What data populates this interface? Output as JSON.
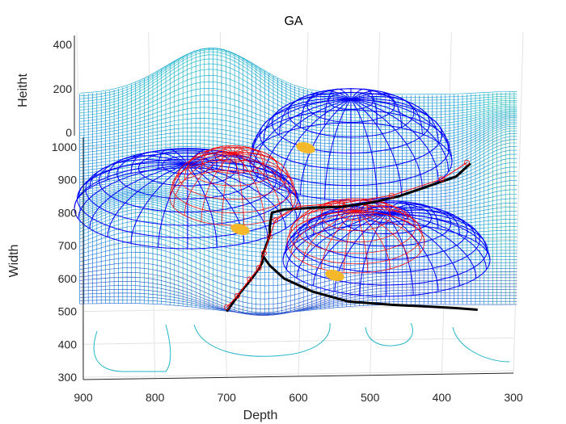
{
  "chart_data": {
    "type": "surface-3d",
    "title": "GA",
    "xlabel": "Depth",
    "ylabel": "Width",
    "zlabel": "Heitht",
    "x_ticks": [
      "900",
      "800",
      "700",
      "600",
      "500",
      "400",
      "300"
    ],
    "y_ticks": [
      "1000",
      "900",
      "800",
      "700",
      "600",
      "500",
      "400",
      "300"
    ],
    "z_ticks": [
      "400",
      "200",
      "0"
    ],
    "xlim": [
      300,
      900
    ],
    "ylim": [
      300,
      1000
    ],
    "zlim": [
      0,
      400
    ],
    "grid": true,
    "terrain_colormap": "parula",
    "threat_domes": [
      {
        "color": "#0000ff",
        "center_depth": 760,
        "center_width": 900
      },
      {
        "color": "#0000ff",
        "center_depth": 520,
        "center_width": 1010
      },
      {
        "color": "#0000ff",
        "center_depth": 480,
        "center_width": 750
      }
    ],
    "inner_domes": [
      {
        "color": "#ff0000",
        "center_depth": 700,
        "center_width": 900
      },
      {
        "color": "#ff0000",
        "center_depth": 500,
        "center_width": 740
      }
    ],
    "markers": [
      {
        "color": "#f5b82a",
        "depth": 590,
        "width": 940
      },
      {
        "color": "#f5b82a",
        "depth": 680,
        "width": 740
      },
      {
        "color": "#f5b82a",
        "depth": 550,
        "width": 610
      }
    ],
    "paths": [
      {
        "color": "#000000",
        "points": [
          [
            700,
            500
          ],
          [
            690,
            530
          ],
          [
            680,
            560
          ],
          [
            665,
            600
          ],
          [
            655,
            630
          ],
          [
            650,
            650
          ],
          [
            650,
            670
          ],
          [
            645,
            700
          ],
          [
            640,
            730
          ],
          [
            640,
            755
          ],
          [
            637,
            800
          ],
          [
            620,
            810
          ],
          [
            580,
            815
          ],
          [
            540,
            818
          ],
          [
            500,
            830
          ],
          [
            460,
            850
          ],
          [
            420,
            880
          ],
          [
            380,
            910
          ],
          [
            360,
            950
          ]
        ]
      },
      {
        "color": "#000000",
        "points": [
          [
            650,
            670
          ],
          [
            640,
            640
          ],
          [
            620,
            600
          ],
          [
            580,
            560
          ],
          [
            530,
            530
          ],
          [
            470,
            520
          ],
          [
            420,
            515
          ],
          [
            380,
            510
          ],
          [
            350,
            505
          ]
        ]
      },
      {
        "color": "#ff0000",
        "points": [
          [
            700,
            505
          ],
          [
            685,
            540
          ],
          [
            668,
            590
          ],
          [
            655,
            625
          ],
          [
            648,
            670
          ],
          [
            640,
            720
          ],
          [
            632,
            770
          ],
          [
            600,
            812
          ],
          [
            540,
            822
          ],
          [
            470,
            845
          ],
          [
            400,
            895
          ],
          [
            365,
            945
          ]
        ]
      }
    ]
  }
}
